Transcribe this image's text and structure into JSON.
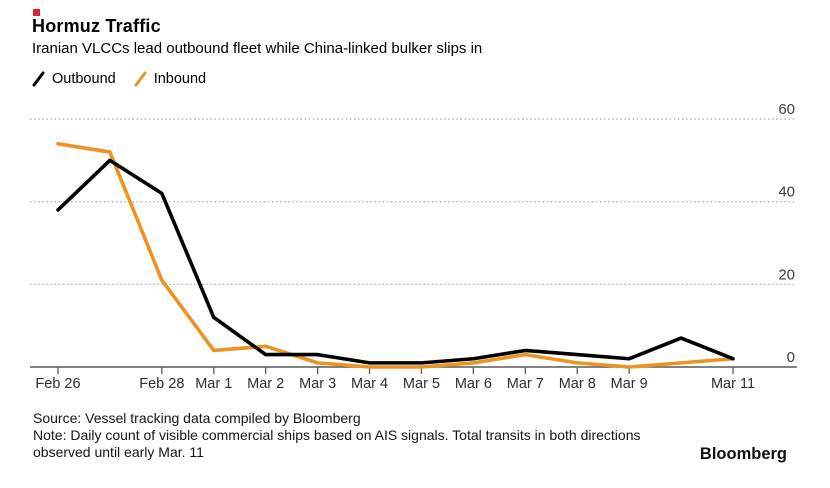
{
  "colors": {
    "brand_red": "#d8262c",
    "outbound": "#000000",
    "inbound": "#ee9322",
    "gridline": "#a8a8a8",
    "axis": "#58585a",
    "tick_label": "#2e2e2e"
  },
  "header": {
    "title": "Hormuz Traffic",
    "subtitle": "Iranian VLCCs lead outbound fleet while China-linked bulker slips in"
  },
  "legend": [
    {
      "label": "Outbound",
      "color": "#000000"
    },
    {
      "label": "Inbound",
      "color": "#ee9322"
    }
  ],
  "chart_data": {
    "type": "line",
    "title": "Hormuz Traffic",
    "x": [
      "Feb 26",
      "Feb 27",
      "Feb 28",
      "Mar 1",
      "Mar 2",
      "Mar 3",
      "Mar 4",
      "Mar 5",
      "Mar 6",
      "Mar 7",
      "Mar 8",
      "Mar 9",
      "Mar 10",
      "Mar 11"
    ],
    "x_tick_labels": [
      "Feb 26",
      "Feb 28",
      "Mar 1",
      "Mar 2",
      "Mar 3",
      "Mar 4",
      "Mar 5",
      "Mar 6",
      "Mar 7",
      "Mar 8",
      "Mar 9",
      "Mar 11"
    ],
    "series": [
      {
        "name": "Outbound",
        "color": "#000000",
        "values": [
          38,
          50,
          42,
          12,
          3,
          3,
          1,
          1,
          2,
          4,
          3,
          2,
          7,
          2
        ]
      },
      {
        "name": "Inbound",
        "color": "#ee9322",
        "values": [
          54,
          52,
          21,
          4,
          5,
          1,
          0,
          0,
          1,
          3,
          1,
          0,
          1,
          2
        ]
      }
    ],
    "ylim": [
      0,
      60
    ],
    "yticks": [
      0,
      20,
      40,
      60
    ],
    "y_axis_side": "right",
    "grid": "horizontal dotted",
    "legend_position": "top-left",
    "ylabel": "",
    "xlabel": ""
  },
  "footer": {
    "source": "Source: Vessel tracking data compiled by Bloomberg",
    "note": "Note: Daily count of visible commercial ships based on AIS signals. Total transits in both directions observed until early Mar. 11",
    "brand": "Bloomberg"
  }
}
